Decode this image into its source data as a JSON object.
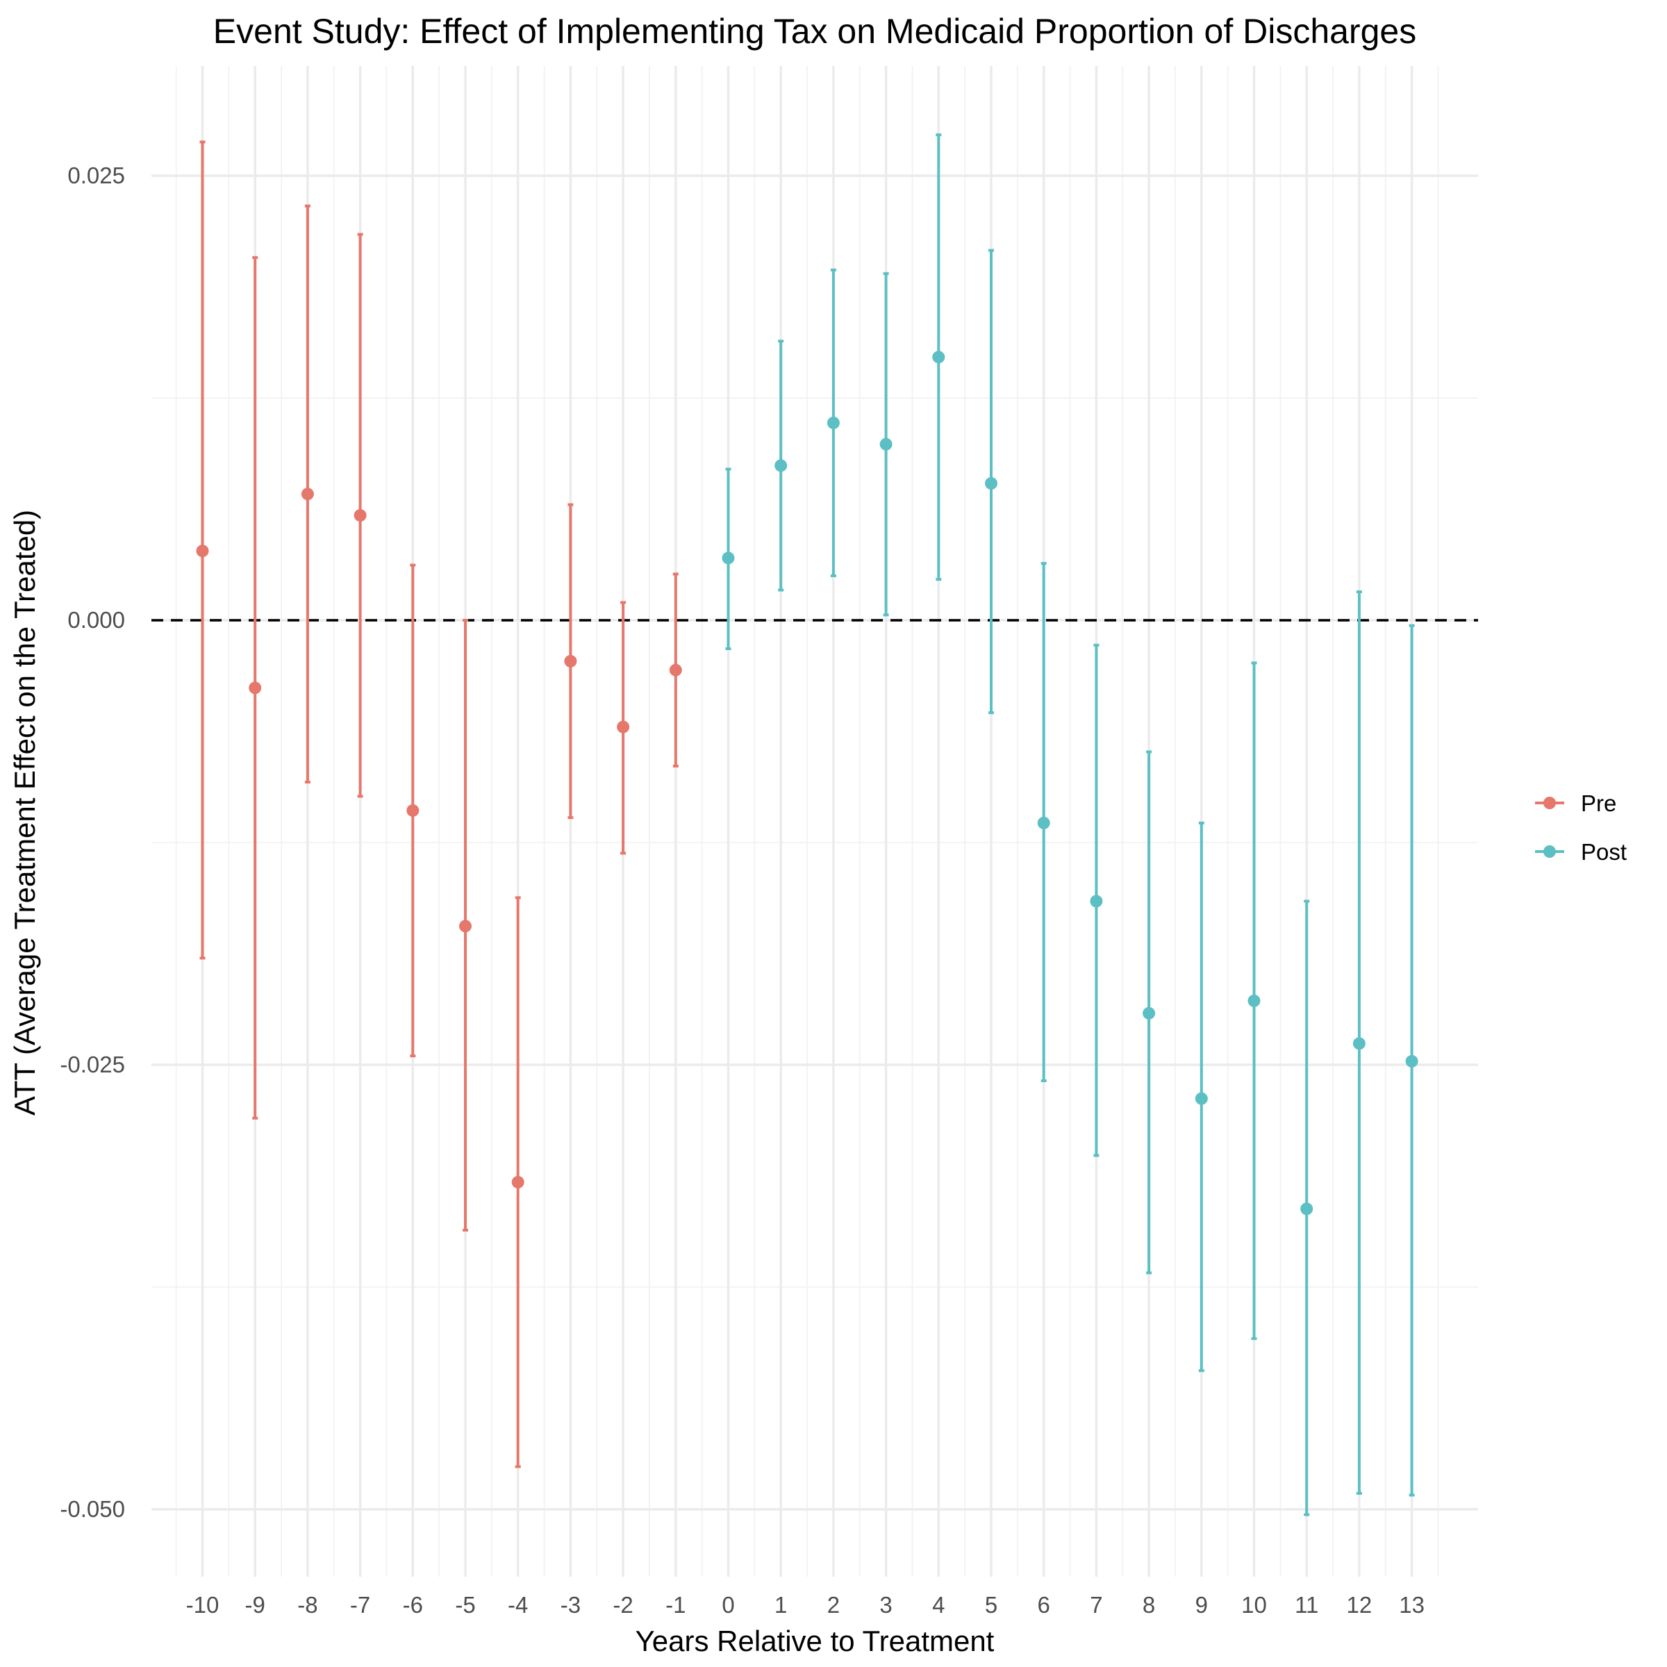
{
  "chart_data": {
    "type": "scatter",
    "subtype": "point-with-errorbars",
    "title": "Event Study: Effect of Implementing Tax on Medicaid Proportion of Discharges",
    "xlabel": "Years Relative to Treatment",
    "ylabel": "ATT (Average Treatment Effect on the Treated)",
    "ylim": [
      -0.053,
      0.031
    ],
    "xlim": [
      -11,
      14
    ],
    "y_ticks": [
      {
        "value": 0.025,
        "label": "0.025"
      },
      {
        "value": 0.0,
        "label": "0.000"
      },
      {
        "value": -0.025,
        "label": "-0.025"
      },
      {
        "value": -0.05,
        "label": "-0.050"
      }
    ],
    "x_ticks": [
      {
        "value": -10,
        "label": "-10"
      },
      {
        "value": -9,
        "label": "-9"
      },
      {
        "value": -8,
        "label": "-8"
      },
      {
        "value": -7,
        "label": "-7"
      },
      {
        "value": -6,
        "label": "-6"
      },
      {
        "value": -5,
        "label": "-5"
      },
      {
        "value": -4,
        "label": "-4"
      },
      {
        "value": -3,
        "label": "-3"
      },
      {
        "value": -2,
        "label": "-2"
      },
      {
        "value": -1,
        "label": "-1"
      },
      {
        "value": 0,
        "label": "0"
      },
      {
        "value": 1,
        "label": "1"
      },
      {
        "value": 2,
        "label": "2"
      },
      {
        "value": 3,
        "label": "3"
      },
      {
        "value": 4,
        "label": "4"
      },
      {
        "value": 5,
        "label": "5"
      },
      {
        "value": 6,
        "label": "6"
      },
      {
        "value": 7,
        "label": "7"
      },
      {
        "value": 8,
        "label": "8"
      },
      {
        "value": 9,
        "label": "9"
      },
      {
        "value": 10,
        "label": "10"
      },
      {
        "value": 11,
        "label": "11"
      },
      {
        "value": 12,
        "label": "12"
      },
      {
        "value": 13,
        "label": "13"
      }
    ],
    "reference_line": {
      "y": 0.0,
      "style": "dashed",
      "color": "#000000"
    },
    "grid": true,
    "legend_position": "right",
    "series": [
      {
        "name": "Pre",
        "color": "#E5776B",
        "points": [
          {
            "x": -10,
            "y": 0.0039,
            "lo": -0.019,
            "hi": 0.0269
          },
          {
            "x": -9,
            "y": -0.0038,
            "lo": -0.028,
            "hi": 0.0204
          },
          {
            "x": -8,
            "y": 0.0071,
            "lo": -0.0091,
            "hi": 0.0233
          },
          {
            "x": -7,
            "y": 0.0059,
            "lo": -0.0099,
            "hi": 0.0217
          },
          {
            "x": -6,
            "y": -0.0107,
            "lo": -0.0245,
            "hi": 0.0031
          },
          {
            "x": -5,
            "y": -0.0172,
            "lo": -0.0343,
            "hi": 0.0
          },
          {
            "x": -4,
            "y": -0.0316,
            "lo": -0.0476,
            "hi": -0.0156
          },
          {
            "x": -3,
            "y": -0.0023,
            "lo": -0.0111,
            "hi": 0.0065
          },
          {
            "x": -2,
            "y": -0.006,
            "lo": -0.0131,
            "hi": 0.001
          },
          {
            "x": -1,
            "y": -0.0028,
            "lo": -0.0082,
            "hi": 0.0026
          }
        ]
      },
      {
        "name": "Post",
        "color": "#5CBFC3",
        "points": [
          {
            "x": 0,
            "y": 0.0035,
            "lo": -0.0016,
            "hi": 0.0085
          },
          {
            "x": 1,
            "y": 0.0087,
            "lo": 0.0017,
            "hi": 0.0157
          },
          {
            "x": 2,
            "y": 0.0111,
            "lo": 0.0025,
            "hi": 0.0197
          },
          {
            "x": 3,
            "y": 0.0099,
            "lo": 0.0003,
            "hi": 0.0195
          },
          {
            "x": 4,
            "y": 0.0148,
            "lo": 0.0023,
            "hi": 0.0273
          },
          {
            "x": 5,
            "y": 0.0077,
            "lo": -0.0052,
            "hi": 0.0208
          },
          {
            "x": 6,
            "y": -0.0114,
            "lo": -0.0259,
            "hi": 0.0032
          },
          {
            "x": 7,
            "y": -0.0158,
            "lo": -0.0301,
            "hi": -0.0014
          },
          {
            "x": 8,
            "y": -0.0221,
            "lo": -0.0367,
            "hi": -0.0074
          },
          {
            "x": 9,
            "y": -0.0269,
            "lo": -0.0422,
            "hi": -0.0114
          },
          {
            "x": 10,
            "y": -0.0214,
            "lo": -0.0404,
            "hi": -0.0024
          },
          {
            "x": 11,
            "y": -0.0331,
            "lo": -0.0503,
            "hi": -0.0158
          },
          {
            "x": 12,
            "y": -0.0238,
            "lo": -0.0491,
            "hi": 0.0016
          },
          {
            "x": 13,
            "y": -0.0248,
            "lo": -0.0492,
            "hi": -0.0003
          }
        ]
      }
    ]
  }
}
